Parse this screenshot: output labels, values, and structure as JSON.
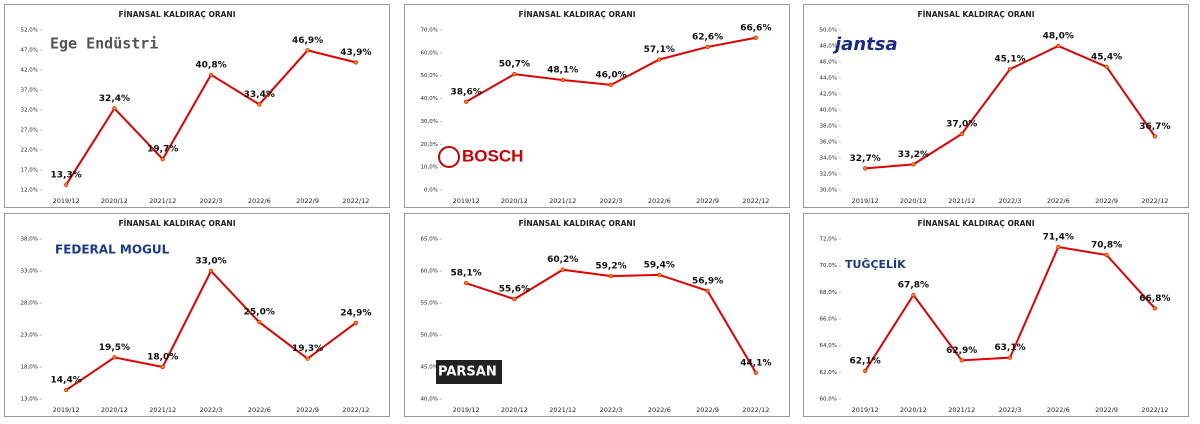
{
  "chart_data": [
    {
      "type": "line",
      "title": "FİNANSAL KALDIRAÇ ORANI",
      "logo": "Ege Endüstri",
      "categories": [
        "2019/12",
        "2020/12",
        "2021/12",
        "2022/3",
        "2022/6",
        "2022/9",
        "2022/12"
      ],
      "values": [
        13.3,
        32.4,
        19.7,
        40.8,
        33.4,
        46.9,
        43.9
      ],
      "value_labels": [
        "13,3%",
        "32,4%",
        "19,7%",
        "40,8%",
        "33,4%",
        "46,9%",
        "43,9%"
      ],
      "color": "#e00000",
      "ylim": [
        12,
        52
      ],
      "yticks": [
        {
          "value": 12,
          "label": "12,0%"
        },
        {
          "value": 17,
          "label": "17,0%"
        },
        {
          "value": 22,
          "label": "22,0%"
        },
        {
          "value": 27,
          "label": "27,0%"
        },
        {
          "value": 32,
          "label": "32,0%"
        },
        {
          "value": 37,
          "label": "37,0%"
        },
        {
          "value": 42,
          "label": "42,0%"
        },
        {
          "value": 47,
          "label": "47,0%"
        },
        {
          "value": 52,
          "label": "52,0%"
        }
      ]
    },
    {
      "type": "line",
      "title": "FİNANSAL KALDIRAÇ ORANI",
      "logo": "BOSCH",
      "categories": [
        "2019/12",
        "2020/12",
        "2021/12",
        "2022/3",
        "2022/6",
        "2022/9",
        "2022/12"
      ],
      "values": [
        38.6,
        50.7,
        48.1,
        46.0,
        57.1,
        62.6,
        66.6
      ],
      "value_labels": [
        "38,6%",
        "50,7%",
        "48,1%",
        "46,0%",
        "57,1%",
        "62,6%",
        "66,6%"
      ],
      "color": "#e00000",
      "ylim": [
        0,
        70
      ],
      "yticks": [
        {
          "value": 0,
          "label": "0,0%"
        },
        {
          "value": 10,
          "label": "10,0%"
        },
        {
          "value": 20,
          "label": "20,0%"
        },
        {
          "value": 30,
          "label": "30,0%"
        },
        {
          "value": 40,
          "label": "40,0%"
        },
        {
          "value": 50,
          "label": "50,0%"
        },
        {
          "value": 60,
          "label": "60,0%"
        },
        {
          "value": 70,
          "label": "70,0%"
        }
      ]
    },
    {
      "type": "line",
      "title": "FİNANSAL KALDIRAÇ ORANI",
      "logo": "jantsa",
      "categories": [
        "2019/12",
        "2020/12",
        "2021/12",
        "2022/3",
        "2022/6",
        "2022/9",
        "2022/12"
      ],
      "values": [
        32.7,
        33.2,
        37.0,
        45.1,
        48.0,
        45.4,
        36.7
      ],
      "value_labels": [
        "32,7%",
        "33,2%",
        "37,0%",
        "45,1%",
        "48,0%",
        "45,4%",
        "36,7%"
      ],
      "color": "#e00000",
      "ylim": [
        30,
        50
      ],
      "yticks": [
        {
          "value": 30,
          "label": "30,0%"
        },
        {
          "value": 32,
          "label": "32,0%"
        },
        {
          "value": 34,
          "label": "34,0%"
        },
        {
          "value": 36,
          "label": "36,0%"
        },
        {
          "value": 38,
          "label": "38,0%"
        },
        {
          "value": 40,
          "label": "40,0%"
        },
        {
          "value": 42,
          "label": "42,0%"
        },
        {
          "value": 44,
          "label": "44,0%"
        },
        {
          "value": 46,
          "label": "46,0%"
        },
        {
          "value": 48,
          "label": "48,0%"
        },
        {
          "value": 50,
          "label": "50,0%"
        }
      ]
    },
    {
      "type": "line",
      "title": "FİNANSAL KALDIRAÇ ORANI",
      "logo": "FEDERAL MOGUL",
      "categories": [
        "2019/12",
        "2020/12",
        "2021/12",
        "2022/3",
        "2022/6",
        "2022/9",
        "2022/12"
      ],
      "values": [
        14.4,
        19.5,
        18.0,
        33.0,
        25.0,
        19.3,
        24.9
      ],
      "value_labels": [
        "14,4%",
        "19,5%",
        "18,0%",
        "33,0%",
        "25,0%",
        "19,3%",
        "24,9%"
      ],
      "color": "#e00000",
      "ylim": [
        13,
        38
      ],
      "yticks": [
        {
          "value": 13,
          "label": "13,0%"
        },
        {
          "value": 18,
          "label": "18,0%"
        },
        {
          "value": 23,
          "label": "23,0%"
        },
        {
          "value": 28,
          "label": "28,0%"
        },
        {
          "value": 33,
          "label": "33,0%"
        },
        {
          "value": 38,
          "label": "38,0%"
        }
      ]
    },
    {
      "type": "line",
      "title": "FİNANSAL KALDIRAÇ ORANI",
      "logo": "PARSAN",
      "categories": [
        "2019/12",
        "2020/12",
        "2021/12",
        "2022/3",
        "2022/6",
        "2022/9",
        "2022/12"
      ],
      "values": [
        58.1,
        55.6,
        60.2,
        59.2,
        59.4,
        56.9,
        44.1
      ],
      "value_labels": [
        "58,1%",
        "55,6%",
        "60,2%",
        "59,2%",
        "59,4%",
        "56,9%",
        "44,1%"
      ],
      "color": "#e00000",
      "ylim": [
        40,
        65
      ],
      "yticks": [
        {
          "value": 40,
          "label": "40,0%"
        },
        {
          "value": 45,
          "label": "45,0%"
        },
        {
          "value": 50,
          "label": "50,0%"
        },
        {
          "value": 55,
          "label": "55,0%"
        },
        {
          "value": 60,
          "label": "60,0%"
        },
        {
          "value": 65,
          "label": "65,0%"
        }
      ]
    },
    {
      "type": "line",
      "title": "FİNANSAL KALDIRAÇ ORANI",
      "logo": "TUĞÇELİK",
      "categories": [
        "2019/12",
        "2020/12",
        "2021/12",
        "2022/3",
        "2022/6",
        "2022/9",
        "2022/12"
      ],
      "values": [
        62.1,
        67.8,
        62.9,
        63.1,
        71.4,
        70.8,
        66.8
      ],
      "value_labels": [
        "62,1%",
        "67,8%",
        "62,9%",
        "63,1%",
        "71,4%",
        "70,8%",
        "66,8%"
      ],
      "color": "#e00000",
      "ylim": [
        60,
        72
      ],
      "yticks": [
        {
          "value": 60,
          "label": "60,0%"
        },
        {
          "value": 62,
          "label": "62,0%"
        },
        {
          "value": 64,
          "label": "64,0%"
        },
        {
          "value": 66,
          "label": "66,0%"
        },
        {
          "value": 68,
          "label": "68,0%"
        },
        {
          "value": 70,
          "label": "70,0%"
        },
        {
          "value": 72,
          "label": "72,0%"
        }
      ]
    }
  ]
}
